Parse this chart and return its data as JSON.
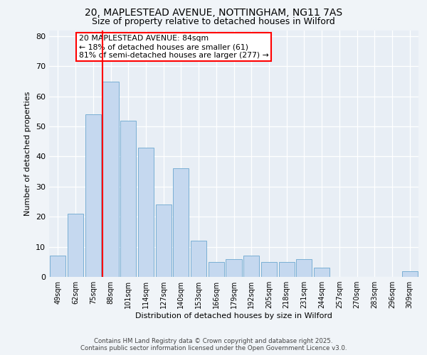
{
  "title_line1": "20, MAPLESTEAD AVENUE, NOTTINGHAM, NG11 7AS",
  "title_line2": "Size of property relative to detached houses in Wilford",
  "xlabel": "Distribution of detached houses by size in Wilford",
  "ylabel": "Number of detached properties",
  "bar_labels": [
    "49sqm",
    "62sqm",
    "75sqm",
    "88sqm",
    "101sqm",
    "114sqm",
    "127sqm",
    "140sqm",
    "153sqm",
    "166sqm",
    "179sqm",
    "192sqm",
    "205sqm",
    "218sqm",
    "231sqm",
    "244sqm",
    "257sqm",
    "270sqm",
    "283sqm",
    "296sqm",
    "309sqm"
  ],
  "bar_values": [
    7,
    21,
    54,
    65,
    52,
    43,
    24,
    36,
    12,
    5,
    6,
    7,
    5,
    5,
    6,
    3,
    0,
    0,
    0,
    0,
    2
  ],
  "bar_color": "#c5d8ef",
  "bar_edge_color": "#7aafd4",
  "background_color": "#f0f4f8",
  "plot_bg_color": "#e8eef5",
  "vline_color": "red",
  "vline_bar_index": 3,
  "annotation_text": "20 MAPLESTEAD AVENUE: 84sqm\n← 18% of detached houses are smaller (61)\n81% of semi-detached houses are larger (277) →",
  "annotation_box_color": "white",
  "annotation_box_edge": "red",
  "ylim": [
    0,
    82
  ],
  "yticks": [
    0,
    10,
    20,
    30,
    40,
    50,
    60,
    70,
    80
  ],
  "footer_line1": "Contains HM Land Registry data © Crown copyright and database right 2025.",
  "footer_line2": "Contains public sector information licensed under the Open Government Licence v3.0."
}
